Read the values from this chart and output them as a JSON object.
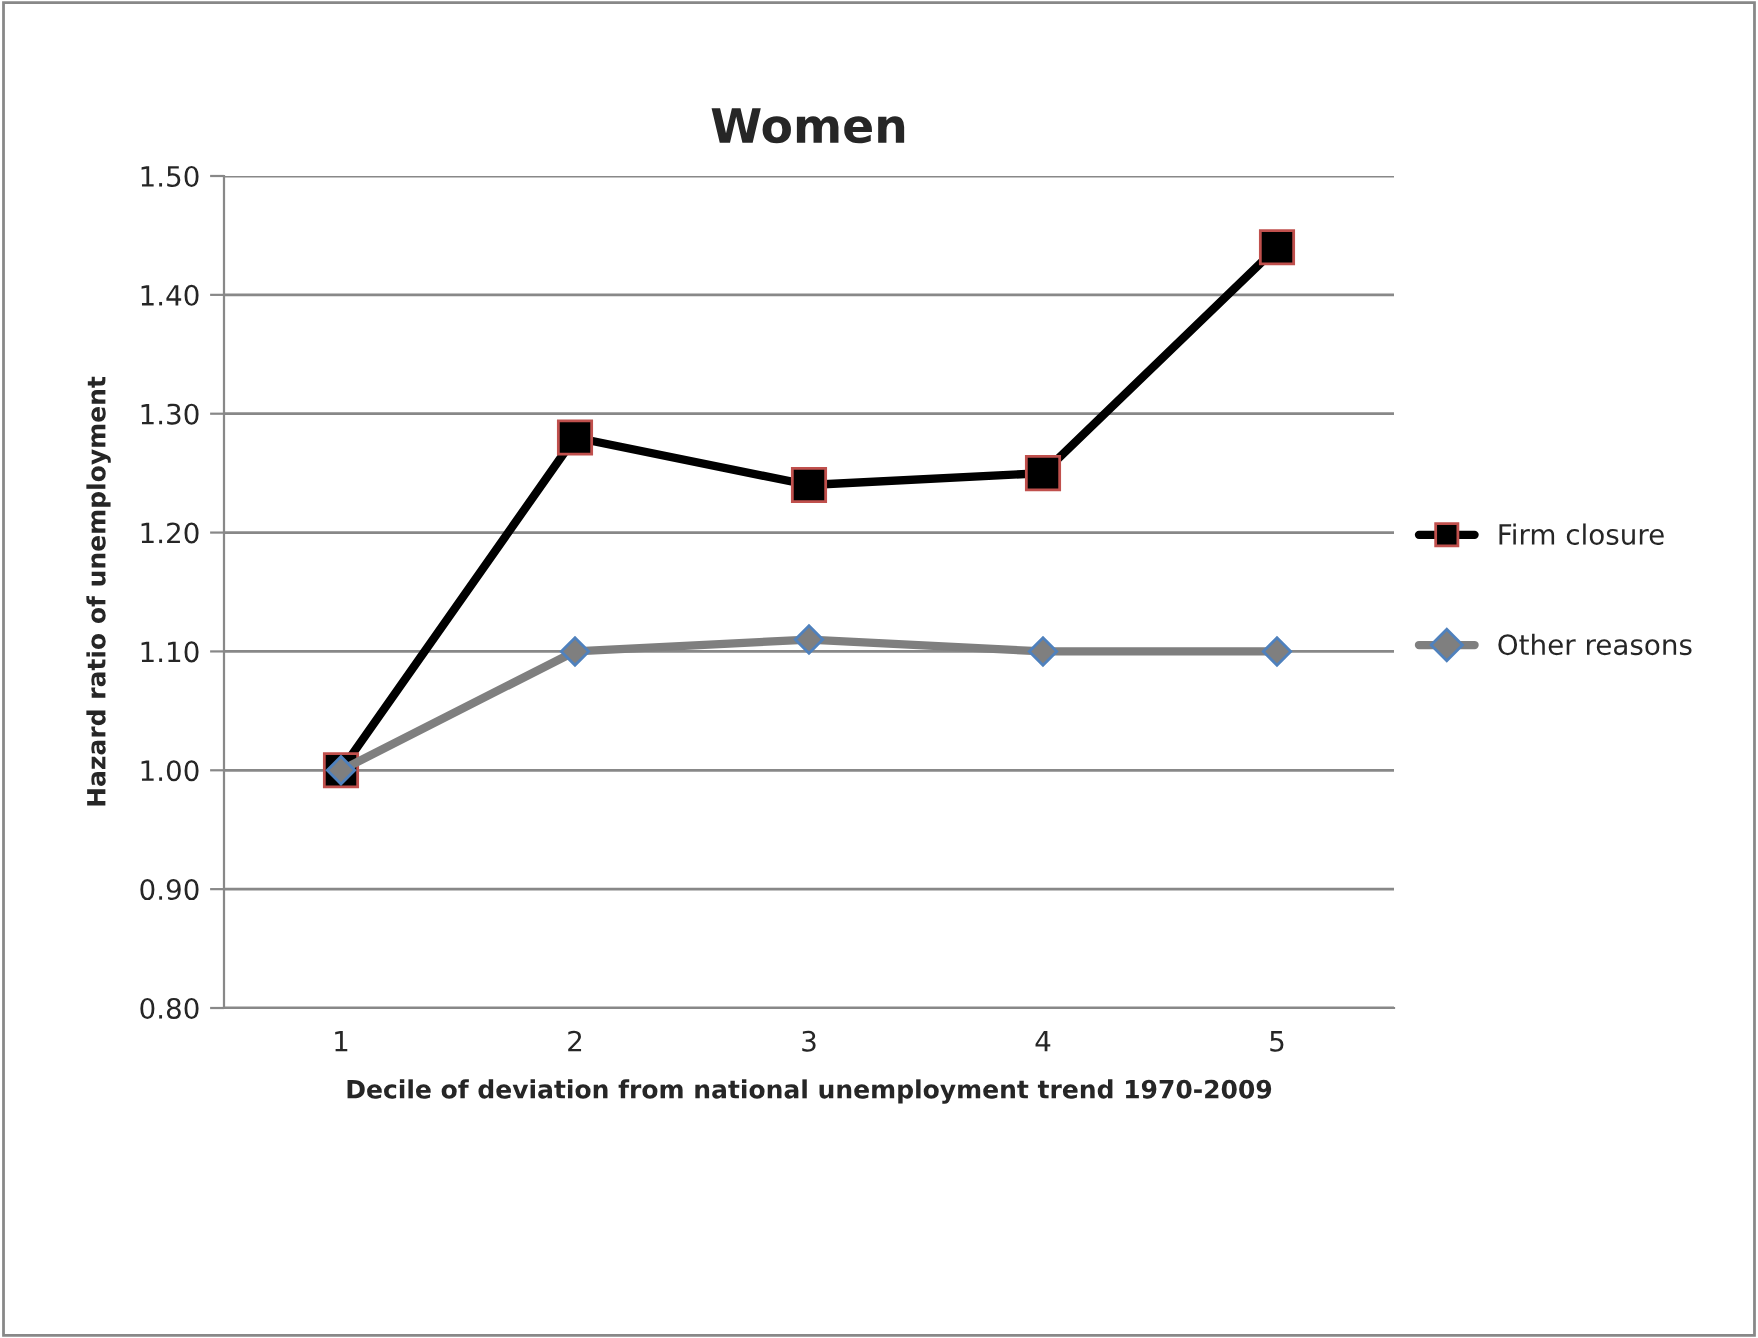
{
  "chart_data": {
    "type": "line",
    "title": "Women",
    "xlabel": "Decile of deviation from national unemployment trend 1970-2009",
    "ylabel": "Hazard ratio of unemployment",
    "categories": [
      "1",
      "2",
      "3",
      "4",
      "5"
    ],
    "series": [
      {
        "name": "Firm closure",
        "color": "#000000",
        "marker": "square",
        "values": [
          1.0,
          1.28,
          1.24,
          1.25,
          1.44
        ]
      },
      {
        "name": "Other reasons",
        "color": "#7f7f7f",
        "marker": "diamond",
        "values": [
          1.0,
          1.1,
          1.11,
          1.1,
          1.1
        ]
      }
    ],
    "ylim": [
      0.8,
      1.5
    ],
    "yticks": [
      {
        "value": 0.8,
        "label": "0.80"
      },
      {
        "value": 0.9,
        "label": "0.90"
      },
      {
        "value": 1.0,
        "label": "1.00"
      },
      {
        "value": 1.1,
        "label": "1.10"
      },
      {
        "value": 1.2,
        "label": "1.20"
      },
      {
        "value": 1.3,
        "label": "1.30"
      },
      {
        "value": 1.4,
        "label": "1.40"
      },
      {
        "value": 1.5,
        "label": "1.50"
      }
    ],
    "grid": "y",
    "legend": "right",
    "line_style": "solid"
  }
}
